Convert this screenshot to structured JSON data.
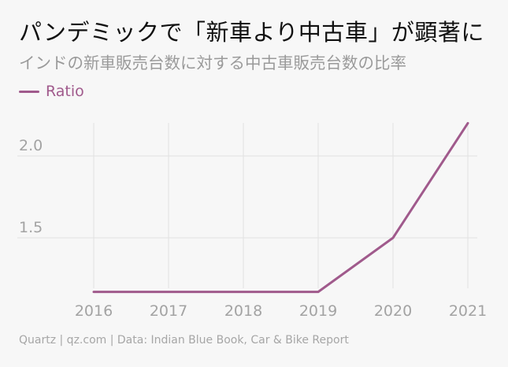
{
  "title": "パンデミックで「新車より中古車」が顕著に",
  "subtitle": "インドの新車販売台数に対する中古車販売台数の比率",
  "footer": "Quartz | qz.com | Data: Indian Blue Book, Car & Bike Report",
  "colors": {
    "series": "#a05a8c",
    "grid": "#e2e2e2",
    "tick_label": "#a3a3a3"
  },
  "chart_data": {
    "type": "line",
    "x": [
      2016,
      2017,
      2018,
      2019,
      2020,
      2021
    ],
    "series": [
      {
        "name": "Ratio",
        "values": [
          1.17,
          1.17,
          1.17,
          1.17,
          1.5,
          2.2
        ]
      }
    ],
    "x_ticks": [
      "2016",
      "2017",
      "2018",
      "2019",
      "2020",
      "2021"
    ],
    "y_ticks": [
      1.5,
      2.0
    ],
    "y_tick_labels": [
      "1.5",
      "2.0"
    ],
    "ylim": [
      1.17,
      2.2
    ],
    "grid": true,
    "legend": "top-left"
  }
}
